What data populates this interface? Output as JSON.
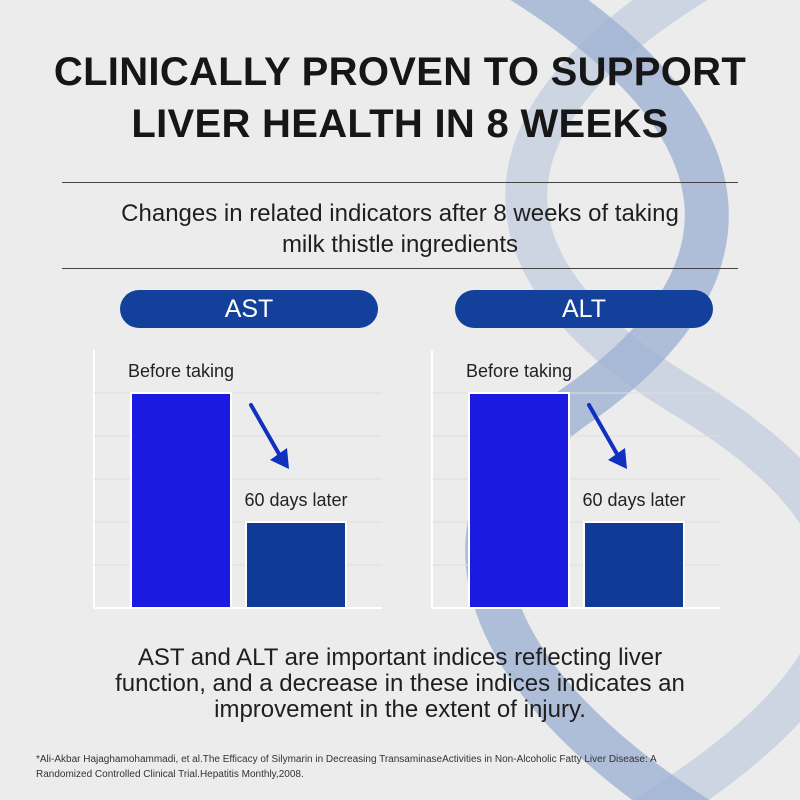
{
  "headline": {
    "line1": "CLINICALLY PROVEN TO SUPPORT",
    "line2": "LIVER HEALTH IN 8 WEEKS"
  },
  "subtitle": {
    "line1": "Changes in related indicators after 8 weeks of taking",
    "line2": "milk thistle ingredients"
  },
  "colors": {
    "pill": "#12409a",
    "before_bar": "#1a1ae0",
    "after_bar": "#0f3a96",
    "arrow": "#1030c0",
    "helix": "#a9b9d6"
  },
  "chart_data": [
    {
      "type": "bar",
      "title": "AST",
      "categories": [
        "Before taking",
        "60 days later"
      ],
      "values": [
        100,
        40
      ],
      "ylim": [
        0,
        120
      ],
      "grid": true,
      "annotation": "downward-arrow"
    },
    {
      "type": "bar",
      "title": "ALT",
      "categories": [
        "Before taking",
        "60 days later"
      ],
      "values": [
        100,
        40
      ],
      "ylim": [
        0,
        120
      ],
      "grid": true,
      "annotation": "downward-arrow"
    }
  ],
  "note": {
    "line1": "AST and ALT are important indices reflecting liver",
    "line2": "function, and a decrease in these indices indicates an",
    "line3": "improvement in the extent of injury."
  },
  "citation": {
    "line1": "*Ali-Akbar Hajaghamohammadi, et al.The Efficacy of Silymarin in Decreasing TransaminaseActivities in Non-Alcoholic Fatty Liver Disease: A",
    "line2": "Randomized Controlled Clinical Trial.Hepatitis Monthly,2008."
  }
}
